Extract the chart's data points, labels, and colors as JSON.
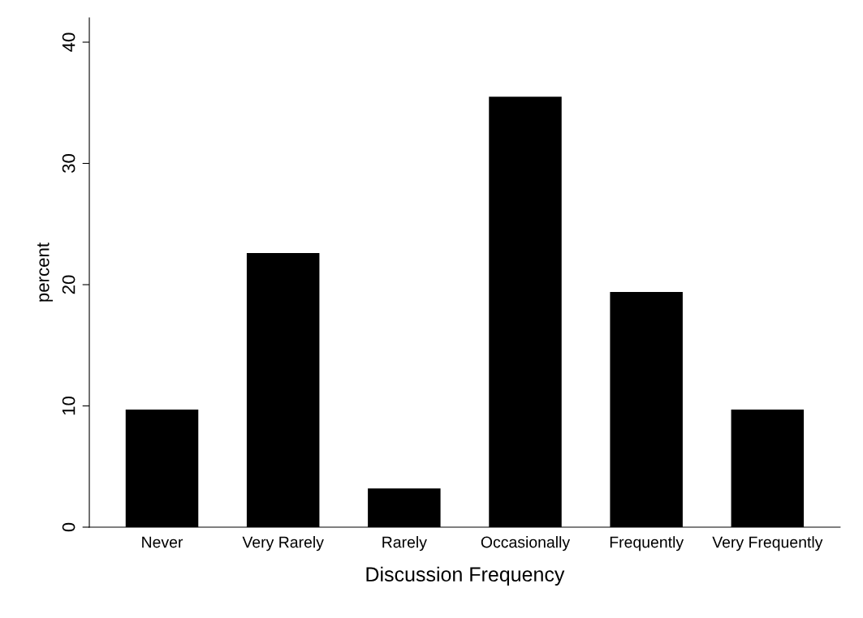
{
  "chart_data": {
    "type": "bar",
    "xlabel": "Discussion Frequency",
    "ylabel": "percent",
    "categories": [
      "Never",
      "Very Rarely",
      "Rarely",
      "Occasionally",
      "Frequently",
      "Very Frequently"
    ],
    "values": [
      9.7,
      22.6,
      3.2,
      35.5,
      19.4,
      9.7
    ],
    "color": "#000000",
    "ylim": [
      0,
      42
    ],
    "yticks": [
      0,
      10,
      20,
      30,
      40
    ],
    "grid": false
  }
}
